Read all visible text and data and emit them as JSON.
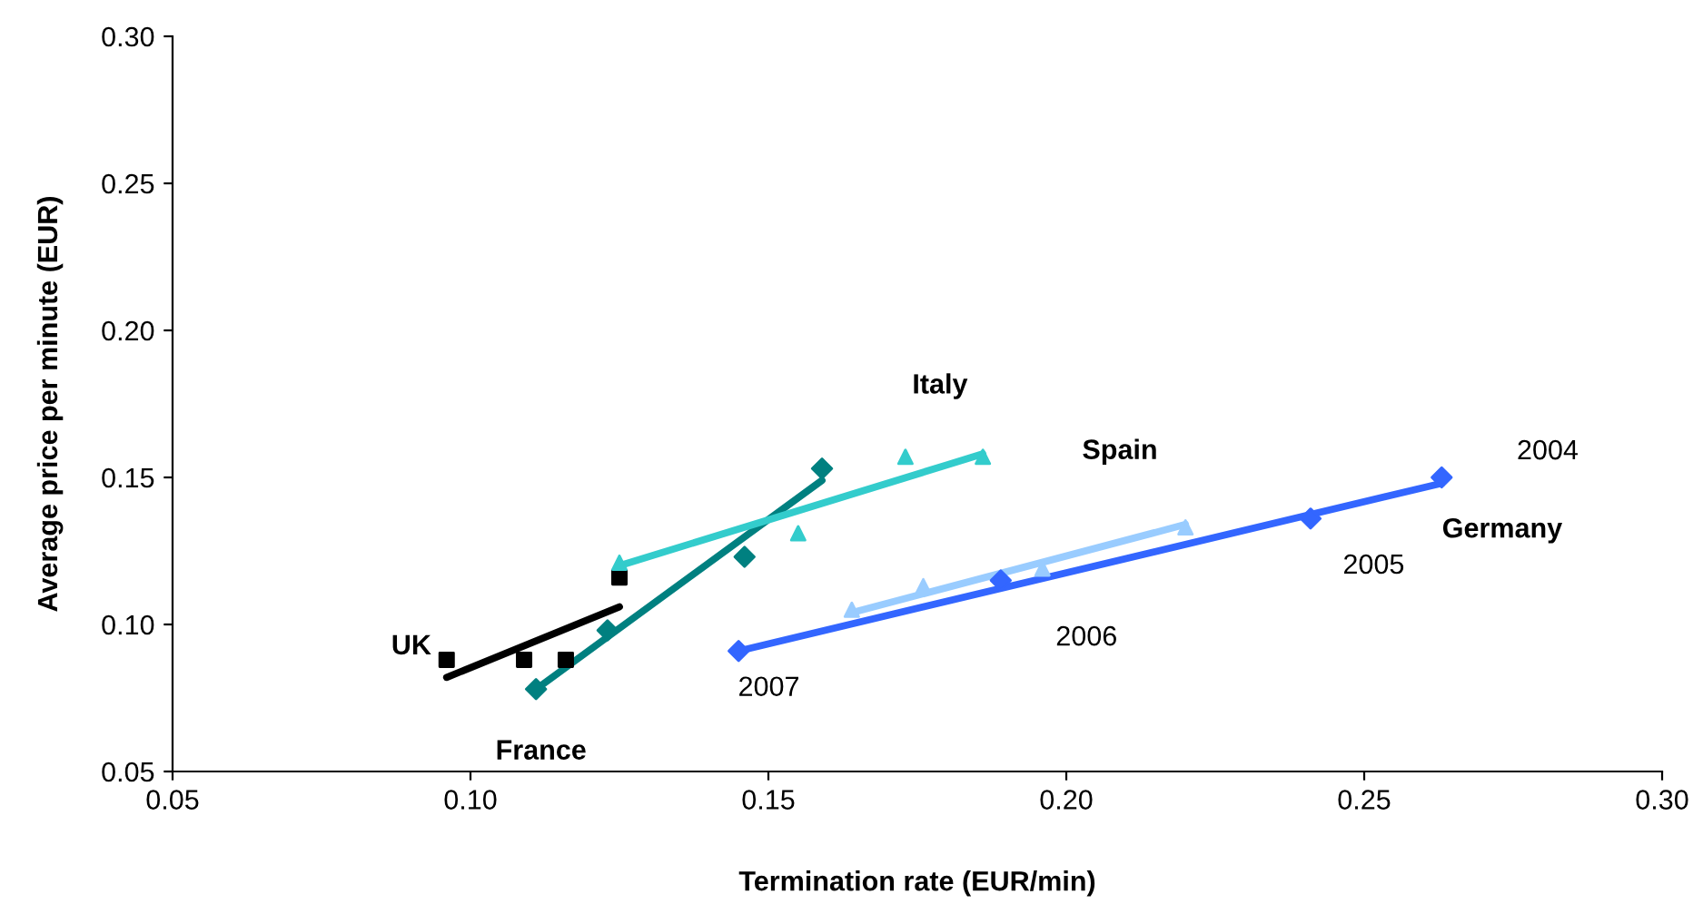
{
  "chart_data": {
    "type": "scatter",
    "xlabel": "Termination rate (EUR/min)",
    "ylabel": "Average price per minute (EUR)",
    "xlim": [
      0.05,
      0.3
    ],
    "ylim": [
      0.05,
      0.3
    ],
    "xticks": [
      {
        "value": 0.05,
        "label": "0.05"
      },
      {
        "value": 0.1,
        "label": "0.10"
      },
      {
        "value": 0.15,
        "label": "0.15"
      },
      {
        "value": 0.2,
        "label": "0.20"
      },
      {
        "value": 0.25,
        "label": "0.25"
      },
      {
        "value": 0.3,
        "label": "0.30"
      }
    ],
    "yticks": [
      {
        "value": 0.05,
        "label": "0.05"
      },
      {
        "value": 0.1,
        "label": "0.10"
      },
      {
        "value": 0.15,
        "label": "0.15"
      },
      {
        "value": 0.2,
        "label": "0.20"
      },
      {
        "value": 0.25,
        "label": "0.25"
      },
      {
        "value": 0.3,
        "label": "0.30"
      }
    ],
    "grid": false,
    "legend": false,
    "series": [
      {
        "name": "UK",
        "marker": "square",
        "color": "#000000",
        "x": [
          0.096,
          0.109,
          0.116,
          0.125
        ],
        "values": [
          0.088,
          0.088,
          0.088,
          0.116
        ]
      },
      {
        "type": "line",
        "marker": "none",
        "color": "#000000",
        "x": [
          0.096,
          0.125
        ],
        "values": [
          0.082,
          0.106
        ]
      },
      {
        "name": "France",
        "marker": "diamond",
        "color": "#008080",
        "x": [
          0.111,
          0.123,
          0.146,
          0.159
        ],
        "values": [
          0.078,
          0.098,
          0.123,
          0.153
        ]
      },
      {
        "type": "line",
        "marker": "none",
        "color": "#008080",
        "x": [
          0.111,
          0.159
        ],
        "values": [
          0.078,
          0.149
        ]
      },
      {
        "name": "Italy",
        "marker": "triangle",
        "color": "#33cccc",
        "x": [
          0.125,
          0.155,
          0.173,
          0.186
        ],
        "values": [
          0.121,
          0.131,
          0.157,
          0.157
        ]
      },
      {
        "type": "line",
        "marker": "none",
        "color": "#33cccc",
        "x": [
          0.125,
          0.186
        ],
        "values": [
          0.12,
          0.158
        ]
      },
      {
        "name": "Spain",
        "marker": "triangle",
        "color": "#99ccff",
        "x": [
          0.164,
          0.176,
          0.196,
          0.22
        ],
        "values": [
          0.105,
          0.113,
          0.119,
          0.133
        ]
      },
      {
        "type": "line",
        "marker": "none",
        "color": "#99ccff",
        "x": [
          0.164,
          0.22
        ],
        "values": [
          0.104,
          0.134
        ]
      },
      {
        "name": "Germany",
        "marker": "diamond",
        "color": "#3366ff",
        "x": [
          0.145,
          0.189,
          0.241,
          0.263
        ],
        "values": [
          0.091,
          0.115,
          0.136,
          0.15
        ]
      },
      {
        "type": "line",
        "marker": "none",
        "color": "#3366ff",
        "x": [
          0.145,
          0.263
        ],
        "values": [
          0.091,
          0.148
        ]
      }
    ],
    "annotations": [
      {
        "text": "2004",
        "x": 0.263,
        "y": 0.15
      },
      {
        "text": "2005",
        "x": 0.241,
        "y": 0.136
      },
      {
        "text": "2006",
        "x": 0.189,
        "y": 0.115
      },
      {
        "text": "2007",
        "x": 0.145,
        "y": 0.091
      }
    ]
  }
}
